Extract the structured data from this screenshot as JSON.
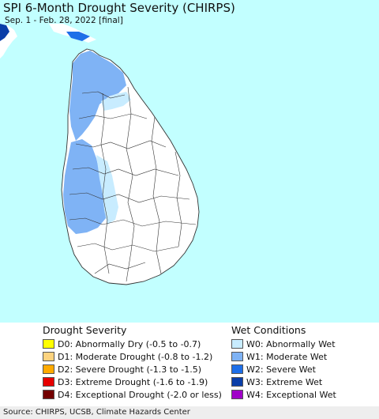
{
  "title": "SPI 6-Month Drought Severity (CHIRPS)",
  "subtitle": "Sep. 1 - Feb. 28, 2022 [final]",
  "colors": {
    "sea": "#c2ffff",
    "land": "#ffffff",
    "w0": "#c8ecff",
    "w1": "#7fb3f5",
    "w2": "#1e6fe8",
    "w3": "#0a3ea8",
    "boundary": "#333333"
  },
  "legend": {
    "drought": {
      "heading": "Drought Severity",
      "items": [
        {
          "label": "D0: Abnormally Dry (-0.5 to -0.7)",
          "color": "#ffff00"
        },
        {
          "label": "D1: Moderate Drought (-0.8 to -1.2)",
          "color": "#fcd37f"
        },
        {
          "label": "D2: Severe Drought (-1.3 to -1.5)",
          "color": "#ffaa00"
        },
        {
          "label": "D3: Extreme Drought (-1.6 to -1.9)",
          "color": "#e60000"
        },
        {
          "label": "D4: Exceptional Drought (-2.0 or less)",
          "color": "#730000"
        }
      ]
    },
    "wet": {
      "heading": "Wet Conditions",
      "items": [
        {
          "label": "W0: Abnormally Wet",
          "color": "#c8ecff"
        },
        {
          "label": "W1: Moderate Wet",
          "color": "#7fb3f5"
        },
        {
          "label": "W2: Severe Wet",
          "color": "#1e6fe8"
        },
        {
          "label": "W3: Extreme Wet",
          "color": "#0a3ea8"
        },
        {
          "label": "W4: Exceptional Wet",
          "color": "#a000c8"
        }
      ]
    }
  },
  "source": "Source: CHIRPS, UCSB, Climate Hazards Center"
}
